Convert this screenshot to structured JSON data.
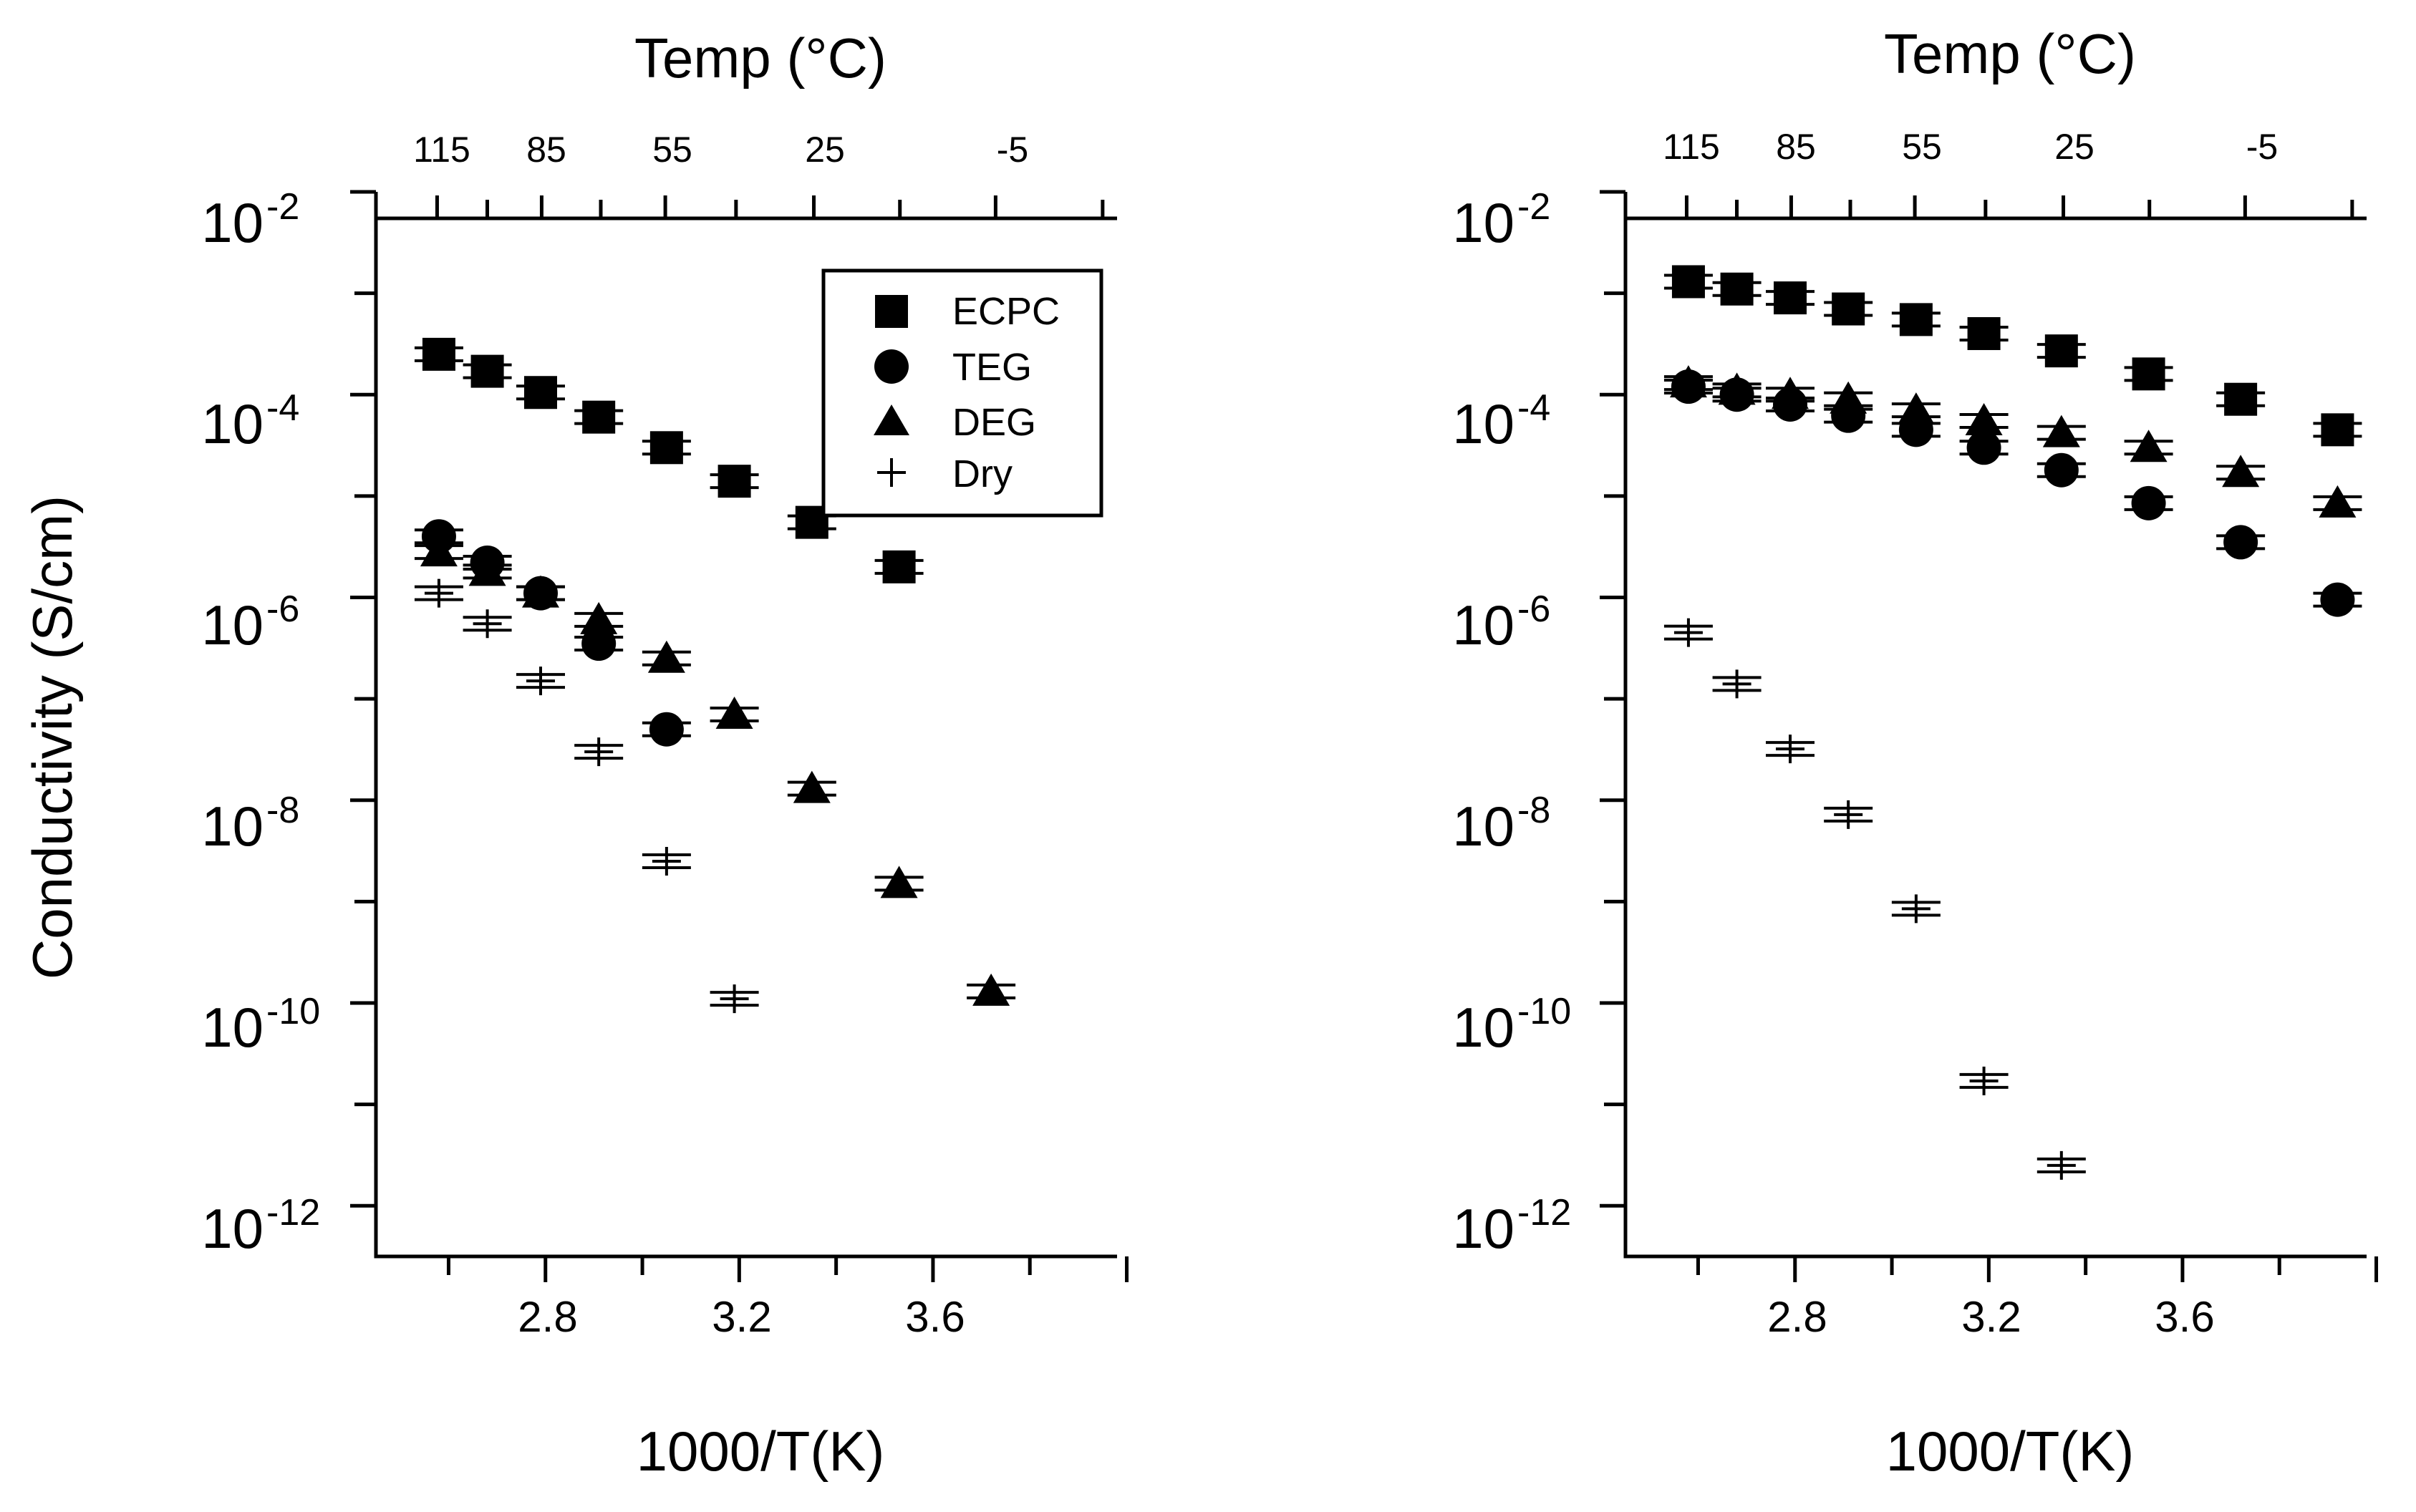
{
  "chart_data": [
    {
      "type": "scatter",
      "panel": "left",
      "xlabel": "1000/T(K)",
      "ylabel": "Conductivity (S/cm)",
      "top_axis_label": "Temp (°C)",
      "yscale": "log",
      "xlim": [
        2.45,
        3.98
      ],
      "ylim_exponent": [
        -12.5,
        -2
      ],
      "x_ticks": [
        "2.8",
        "3.2",
        "3.6"
      ],
      "y_tick_exponents": [
        "-2",
        "-4",
        "-6",
        "-8",
        "-10",
        "-12"
      ],
      "y_tick_base": "10",
      "temp_ticks": [
        "115",
        "85",
        "55",
        "25",
        "-5"
      ],
      "temp_tick_values_C": [
        115,
        85,
        55,
        25,
        -5
      ],
      "legend_position": "top-right",
      "series": [
        {
          "name": "ECPC",
          "marker": "square",
          "x": [
            2.58,
            2.68,
            2.79,
            2.91,
            3.05,
            3.19,
            3.35,
            3.53
          ],
          "y": [
            0.00025,
            0.00017,
            0.000105,
            6e-05,
            3e-05,
            1.4e-05,
            5.5e-06,
            2e-06
          ]
        },
        {
          "name": "TEG",
          "marker": "circle",
          "x": [
            2.58,
            2.68,
            2.79,
            2.91,
            3.05
          ],
          "y": [
            4e-06,
            2.2e-06,
            1.1e-06,
            3.5e-07,
            5e-08
          ]
        },
        {
          "name": "DEG",
          "marker": "triangle",
          "x": [
            2.58,
            2.68,
            2.79,
            2.91,
            3.05,
            3.19,
            3.35,
            3.53,
            3.72
          ],
          "y": [
            2.8e-06,
            1.8e-06,
            1.1e-06,
            6e-07,
            2.5e-07,
            7e-08,
            1.3e-08,
            1.5e-09,
            1.3e-10
          ]
        },
        {
          "name": "Dry",
          "marker": "plus",
          "x": [
            2.58,
            2.68,
            2.79,
            2.91,
            3.05,
            3.19
          ],
          "y": [
            1.1e-06,
            5.5e-07,
            1.5e-07,
            3e-08,
            2.5e-09,
            1.1e-10
          ]
        }
      ]
    },
    {
      "type": "scatter",
      "panel": "right",
      "xlabel": "1000/T(K)",
      "ylabel": "",
      "top_axis_label": "Temp (°C)",
      "yscale": "log",
      "xlim": [
        2.45,
        3.98
      ],
      "ylim_exponent": [
        -12.5,
        -2
      ],
      "x_ticks": [
        "2.8",
        "3.2",
        "3.6"
      ],
      "y_tick_exponents": [
        "-2",
        "-4",
        "-6",
        "-8",
        "-10",
        "-12"
      ],
      "y_tick_base": "10",
      "temp_ticks": [
        "115",
        "85",
        "55",
        "25",
        "-5"
      ],
      "temp_tick_values_C": [
        115,
        85,
        55,
        25,
        -5
      ],
      "series": [
        {
          "name": "ECPC",
          "marker": "square",
          "x": [
            2.58,
            2.68,
            2.79,
            2.91,
            3.05,
            3.19,
            3.35,
            3.53,
            3.72,
            3.92
          ],
          "y": [
            0.0013,
            0.0011,
            0.0009,
            0.0007,
            0.00055,
            0.0004,
            0.00027,
            0.00016,
            9e-05,
            4.5e-05
          ]
        },
        {
          "name": "TEG",
          "marker": "circle",
          "x": [
            2.58,
            2.68,
            2.79,
            2.91,
            3.05,
            3.19,
            3.35,
            3.53,
            3.72,
            3.92
          ],
          "y": [
            0.00012,
            0.0001,
            8e-05,
            6.2e-05,
            4.5e-05,
            3e-05,
            1.8e-05,
            8.5e-06,
            3.5e-06,
            9.5e-07
          ]
        },
        {
          "name": "DEG",
          "marker": "triangle",
          "x": [
            2.58,
            2.68,
            2.79,
            2.91,
            3.05,
            3.19,
            3.35,
            3.53,
            3.72,
            3.92
          ],
          "y": [
            0.00013,
            0.00011,
            0.0001,
            9e-05,
            7e-05,
            5.5e-05,
            4.2e-05,
            3e-05,
            1.7e-05,
            8.5e-06
          ]
        },
        {
          "name": "Dry",
          "marker": "plus",
          "x": [
            2.58,
            2.68,
            2.79,
            2.91,
            3.05,
            3.19,
            3.35
          ],
          "y": [
            4.5e-07,
            1.4e-07,
            3.2e-08,
            7.2e-09,
            8.5e-10,
            1.7e-11,
            2.5e-12
          ]
        }
      ]
    }
  ]
}
